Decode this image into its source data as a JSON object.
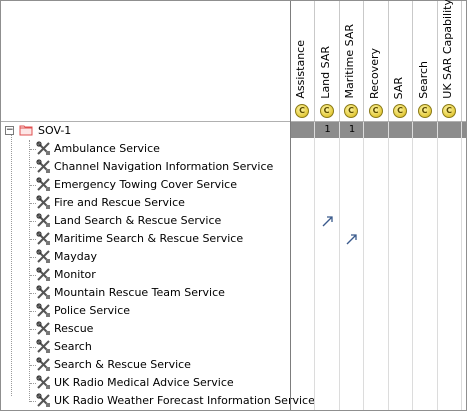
{
  "columns": [
    {
      "label": "Assistance",
      "icon": "c-circle-icon"
    },
    {
      "label": "Land SAR",
      "icon": "c-circle-icon"
    },
    {
      "label": "Maritime SAR",
      "icon": "c-circle-icon"
    },
    {
      "label": "Recovery",
      "icon": "c-circle-icon"
    },
    {
      "label": "SAR",
      "icon": "c-circle-icon"
    },
    {
      "label": "Search",
      "icon": "c-circle-icon"
    },
    {
      "label": "UK SAR Capability",
      "icon": "c-circle-icon"
    }
  ],
  "column_icon_glyph": "C",
  "root": {
    "label": "SOV-1",
    "expander": "−",
    "counts": [
      "",
      "1",
      "1",
      "",
      "",
      "",
      ""
    ]
  },
  "services": [
    {
      "label": "Ambulance Service",
      "mark": null
    },
    {
      "label": "Channel Navigation Information Service",
      "mark": null
    },
    {
      "label": "Emergency Towing Cover Service",
      "mark": null
    },
    {
      "label": "Fire and Rescue Service",
      "mark": null
    },
    {
      "label": "Land Search & Rescue Service",
      "mark": "Land SAR"
    },
    {
      "label": "Maritime Search & Rescue Service",
      "mark": "Maritime SAR"
    },
    {
      "label": "Mayday",
      "mark": null
    },
    {
      "label": "Monitor",
      "mark": null
    },
    {
      "label": "Mountain Rescue Team Service",
      "mark": null
    },
    {
      "label": "Police Service",
      "mark": null
    },
    {
      "label": "Rescue",
      "mark": null
    },
    {
      "label": "Search",
      "mark": null
    },
    {
      "label": "Search & Rescue Service",
      "mark": null
    },
    {
      "label": "UK Radio Medical Advice Service",
      "mark": null
    },
    {
      "label": "UK Radio Weather Forecast Information Service",
      "mark": null
    }
  ],
  "colors": {
    "summary_row": "#8c8c8c",
    "arrow": "#3a5a8c",
    "folder": "#e05050"
  }
}
